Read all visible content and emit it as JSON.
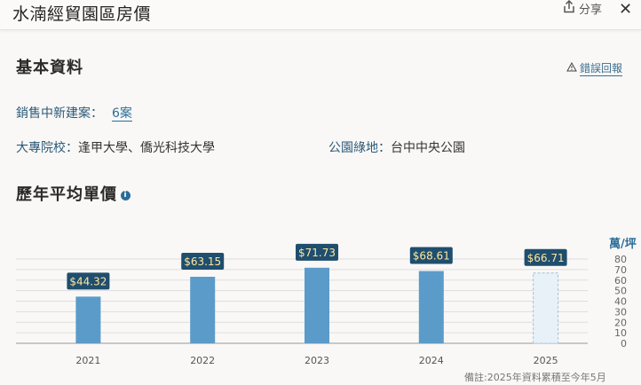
{
  "header": {
    "title": "水湳經貿園區房價",
    "share_label": "分享",
    "close_label": "✕"
  },
  "basic": {
    "title": "基本資料",
    "report_label": "錯誤回報",
    "sales_label": "銷售中新建案：",
    "sales_value": "6案",
    "college_label": "大專院校：",
    "college_value": "逢甲大學、僑光科技大學",
    "park_label": "公園綠地：",
    "park_value": "台中中央公園"
  },
  "price_section": {
    "title": "歷年平均單價",
    "unit": "萬/坪",
    "note": "備註:2025年資料累積至今年5月"
  },
  "chart_data": {
    "type": "bar",
    "categories": [
      "2021",
      "2022",
      "2023",
      "2024",
      "2025"
    ],
    "values": [
      44.32,
      63.15,
      71.73,
      68.61,
      66.71
    ],
    "data_labels": [
      "$44.32",
      "$63.15",
      "$71.73",
      "$68.61",
      "$66.71"
    ],
    "ylim": [
      0,
      80
    ],
    "yticks": [
      "0",
      "10",
      "20",
      "30",
      "40",
      "50",
      "60",
      "70",
      "80"
    ],
    "ylabel": "萬/坪",
    "partial_last": true,
    "colors": {
      "bar": "#5b9bc9",
      "partial_bar": "#e8f1f8",
      "label_bg": "#1f4e6e",
      "label_text": "#ffe7a0"
    }
  }
}
